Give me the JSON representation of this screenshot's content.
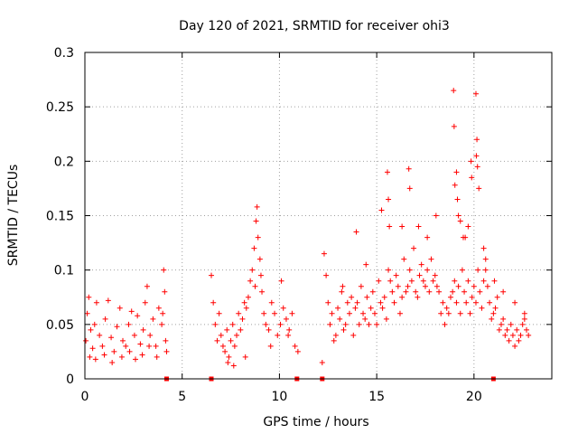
{
  "chart_data": {
    "type": "scatter",
    "title": "Day 120 of 2021, SRMTID for receiver ohi3",
    "xlabel": "GPS time / hours",
    "ylabel": "SRMTID / TECUs",
    "xlim": [
      0,
      24
    ],
    "ylim": [
      0,
      0.3
    ],
    "grid": true,
    "marker": "+",
    "colors": {
      "series": "#ff0000",
      "grid": "#a0a0a0",
      "axis": "#000000"
    },
    "x_ticks": [
      {
        "value": 0,
        "label": "0"
      },
      {
        "value": 5,
        "label": "5"
      },
      {
        "value": 10,
        "label": "10"
      },
      {
        "value": 15,
        "label": "15"
      },
      {
        "value": 20,
        "label": "20"
      }
    ],
    "y_ticks": [
      {
        "value": 0,
        "label": "0"
      },
      {
        "value": 0.05,
        "label": "0.05"
      },
      {
        "value": 0.1,
        "label": "0.1"
      },
      {
        "value": 0.15,
        "label": "0.15"
      },
      {
        "value": 0.2,
        "label": "0.2"
      },
      {
        "value": 0.25,
        "label": "0.25"
      },
      {
        "value": 0.3,
        "label": "0.3"
      }
    ],
    "gap_markers_x": [
      4.2,
      6.5,
      10.9,
      12.2,
      21.0
    ],
    "series": [
      {
        "name": "SRMTID",
        "x": [
          0.05,
          0.12,
          0.2,
          0.3,
          0.4,
          0.5,
          0.6,
          0.75,
          0.9,
          1.05,
          1.2,
          1.35,
          1.5,
          1.65,
          1.8,
          1.95,
          2.1,
          2.25,
          2.4,
          2.55,
          2.7,
          2.85,
          3.0,
          3.1,
          3.2,
          3.35,
          3.5,
          3.65,
          3.8,
          3.95,
          4.05,
          4.1,
          4.15,
          4.2,
          0.25,
          0.55,
          1.0,
          1.4,
          1.9,
          2.3,
          2.6,
          2.95,
          3.3,
          3.7,
          4.0,
          6.5,
          6.6,
          6.7,
          6.8,
          6.9,
          7.0,
          7.1,
          7.2,
          7.3,
          7.4,
          7.5,
          7.6,
          7.7,
          7.8,
          7.9,
          8.0,
          8.1,
          8.2,
          8.3,
          8.4,
          8.5,
          8.6,
          8.7,
          8.8,
          8.85,
          8.9,
          9.0,
          9.1,
          9.2,
          9.3,
          9.45,
          9.6,
          9.75,
          9.9,
          10.05,
          10.2,
          10.35,
          10.5,
          10.65,
          10.8,
          10.95,
          7.35,
          7.65,
          8.25,
          8.75,
          9.05,
          9.55,
          10.1,
          10.45,
          12.2,
          12.3,
          12.4,
          12.5,
          12.6,
          12.7,
          12.8,
          12.9,
          13.0,
          13.1,
          13.2,
          13.3,
          13.4,
          13.5,
          13.6,
          13.7,
          13.8,
          13.9,
          14.0,
          14.1,
          14.2,
          14.3,
          14.4,
          14.5,
          14.6,
          14.7,
          14.8,
          14.9,
          15.0,
          15.1,
          15.2,
          15.3,
          15.4,
          15.5,
          15.6,
          15.7,
          15.8,
          15.9,
          16.0,
          16.1,
          16.2,
          16.3,
          16.4,
          16.5,
          16.6,
          16.7,
          16.8,
          16.9,
          17.0,
          17.1,
          17.2,
          17.3,
          17.4,
          17.5,
          17.6,
          17.7,
          17.8,
          17.9,
          18.0,
          18.1,
          18.2,
          18.3,
          18.4,
          18.5,
          18.6,
          18.7,
          18.8,
          18.9,
          19.0,
          19.1,
          19.2,
          19.3,
          19.4,
          19.5,
          19.6,
          19.7,
          19.8,
          19.9,
          20.0,
          20.1,
          20.2,
          20.3,
          20.4,
          20.5,
          20.6,
          20.7,
          20.8,
          20.9,
          21.0,
          21.1,
          21.2,
          21.3,
          21.4,
          21.5,
          21.6,
          21.7,
          21.8,
          21.9,
          22.0,
          22.1,
          22.2,
          22.3,
          22.4,
          22.5,
          22.6,
          22.7,
          22.8,
          13.25,
          13.95,
          14.45,
          15.25,
          15.55,
          15.6,
          15.65,
          16.3,
          16.65,
          16.7,
          17.15,
          17.6,
          18.05,
          18.95,
          18.98,
          19.02,
          19.1,
          19.15,
          19.2,
          19.3,
          19.45,
          19.55,
          19.7,
          19.85,
          19.88,
          20.1,
          20.12,
          20.15,
          20.18,
          20.25,
          20.5,
          20.6,
          21.05,
          21.5,
          22.1,
          22.6
        ],
        "y": [
          0.035,
          0.06,
          0.075,
          0.045,
          0.028,
          0.05,
          0.07,
          0.04,
          0.03,
          0.055,
          0.072,
          0.038,
          0.025,
          0.048,
          0.065,
          0.035,
          0.03,
          0.05,
          0.062,
          0.04,
          0.058,
          0.032,
          0.045,
          0.07,
          0.085,
          0.04,
          0.055,
          0.03,
          0.065,
          0.05,
          0.1,
          0.08,
          0.035,
          0.025,
          0.02,
          0.018,
          0.022,
          0.015,
          0.02,
          0.025,
          0.018,
          0.022,
          0.03,
          0.02,
          0.06,
          0.095,
          0.07,
          0.05,
          0.035,
          0.06,
          0.04,
          0.03,
          0.025,
          0.045,
          0.02,
          0.035,
          0.05,
          0.03,
          0.04,
          0.06,
          0.045,
          0.055,
          0.07,
          0.065,
          0.075,
          0.09,
          0.1,
          0.12,
          0.145,
          0.158,
          0.13,
          0.11,
          0.08,
          0.06,
          0.05,
          0.045,
          0.07,
          0.06,
          0.04,
          0.05,
          0.065,
          0.055,
          0.045,
          0.06,
          0.03,
          0.025,
          0.015,
          0.012,
          0.02,
          0.085,
          0.095,
          0.03,
          0.09,
          0.04,
          0.015,
          0.115,
          0.095,
          0.07,
          0.05,
          0.06,
          0.035,
          0.04,
          0.065,
          0.055,
          0.08,
          0.045,
          0.05,
          0.07,
          0.06,
          0.075,
          0.04,
          0.065,
          0.07,
          0.05,
          0.085,
          0.06,
          0.055,
          0.075,
          0.05,
          0.065,
          0.08,
          0.06,
          0.05,
          0.09,
          0.07,
          0.065,
          0.075,
          0.055,
          0.1,
          0.09,
          0.08,
          0.07,
          0.095,
          0.085,
          0.06,
          0.075,
          0.11,
          0.08,
          0.085,
          0.1,
          0.09,
          0.12,
          0.08,
          0.075,
          0.095,
          0.105,
          0.09,
          0.085,
          0.1,
          0.08,
          0.11,
          0.09,
          0.095,
          0.085,
          0.08,
          0.06,
          0.07,
          0.05,
          0.065,
          0.06,
          0.075,
          0.08,
          0.09,
          0.07,
          0.085,
          0.06,
          0.1,
          0.08,
          0.07,
          0.09,
          0.06,
          0.075,
          0.085,
          0.07,
          0.1,
          0.08,
          0.065,
          0.09,
          0.1,
          0.085,
          0.07,
          0.055,
          0.06,
          0.065,
          0.075,
          0.045,
          0.05,
          0.055,
          0.04,
          0.045,
          0.035,
          0.05,
          0.04,
          0.03,
          0.045,
          0.035,
          0.04,
          0.05,
          0.055,
          0.045,
          0.04,
          0.085,
          0.135,
          0.105,
          0.155,
          0.19,
          0.165,
          0.14,
          0.14,
          0.193,
          0.175,
          0.14,
          0.13,
          0.15,
          0.265,
          0.232,
          0.178,
          0.19,
          0.165,
          0.15,
          0.145,
          0.13,
          0.13,
          0.14,
          0.2,
          0.185,
          0.262,
          0.205,
          0.22,
          0.195,
          0.175,
          0.12,
          0.11,
          0.09,
          0.08,
          0.07,
          0.06
        ]
      }
    ]
  }
}
